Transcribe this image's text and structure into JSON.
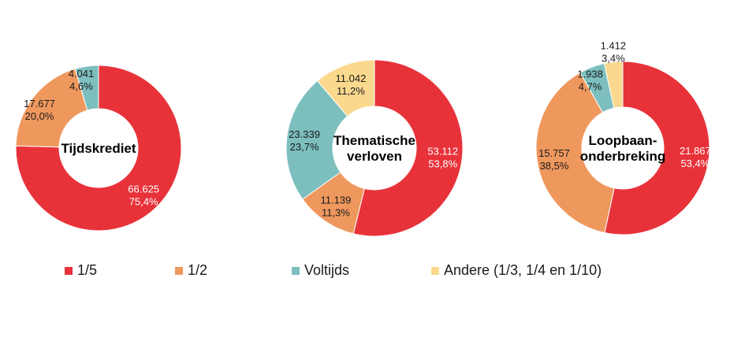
{
  "colors": {
    "one_fifth": "#E8323A",
    "one_half": "#EF985E",
    "fulltime": "#7DBFBF",
    "other": "#FAD98E"
  },
  "legend": [
    {
      "label": "1/5",
      "color_key": "one_fifth"
    },
    {
      "label": "1/2",
      "color_key": "one_half"
    },
    {
      "label": "Voltijds",
      "color_key": "fulltime"
    },
    {
      "label": "Andere (1/3, 1/4 en 1/10)",
      "color_key": "other"
    }
  ],
  "chart_data": [
    {
      "type": "pie",
      "center_label": [
        "Tijdskrediet"
      ],
      "slices": [
        {
          "category": "1/5",
          "value": 66625,
          "value_label": "66.625",
          "pct_label": "75,4%"
        },
        {
          "category": "1/2",
          "value": 17677,
          "value_label": "17.677",
          "pct_label": "20,0%"
        },
        {
          "category": "Voltijds",
          "value": 4041,
          "value_label": "4.041",
          "pct_label": "4,6%"
        }
      ]
    },
    {
      "type": "pie",
      "center_label": [
        "Thematische",
        "verloven"
      ],
      "slices": [
        {
          "category": "1/5",
          "value": 53112,
          "value_label": "53.112",
          "pct_label": "53,8%"
        },
        {
          "category": "1/2",
          "value": 11139,
          "value_label": "11.139",
          "pct_label": "11,3%"
        },
        {
          "category": "Voltijds",
          "value": 23339,
          "value_label": "23.339",
          "pct_label": "23,7%"
        },
        {
          "category": "Andere (1/3, 1/4 en 1/10)",
          "value": 11042,
          "value_label": "11.042",
          "pct_label": "11,2%"
        }
      ]
    },
    {
      "type": "pie",
      "center_label": [
        "Loopbaan-",
        "onderbreking"
      ],
      "slices": [
        {
          "category": "1/5",
          "value": 21867,
          "value_label": "21.867",
          "pct_label": "53,4%"
        },
        {
          "category": "1/2",
          "value": 15757,
          "value_label": "15.757",
          "pct_label": "38,5%"
        },
        {
          "category": "Voltijds",
          "value": 1938,
          "value_label": "1.938",
          "pct_label": "4,7%"
        },
        {
          "category": "Andere (1/3, 1/4 en 1/10)",
          "value": 1412,
          "value_label": "1.412",
          "pct_label": "3,4%"
        }
      ]
    }
  ]
}
